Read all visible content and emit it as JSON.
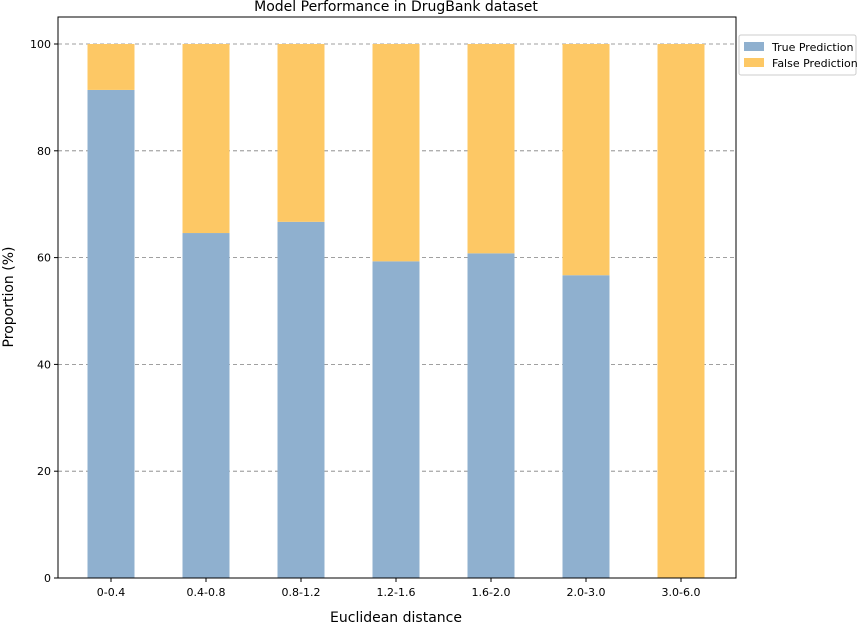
{
  "chart_data": {
    "type": "bar",
    "stacked": true,
    "title": "Model Performance in DrugBank dataset",
    "xlabel": "Euclidean distance",
    "ylabel": "Proportion (%)",
    "ylim": [
      0,
      100
    ],
    "yticks": [
      0,
      20,
      40,
      60,
      80,
      100
    ],
    "grid": "horizontal dashed",
    "legend_position": "outside-top-right",
    "categories": [
      "0-0.4",
      "0.4-0.8",
      "0.8-1.2",
      "1.2-1.6",
      "1.6-2.0",
      "2.0-3.0",
      "3.0-6.0"
    ],
    "series": [
      {
        "name": "True Prediction",
        "color": "#8fb0cf",
        "values": [
          91.4,
          64.6,
          66.7,
          59.3,
          60.8,
          56.7,
          0
        ]
      },
      {
        "name": "False Prediction",
        "color": "#fdc865",
        "values": [
          8.6,
          35.4,
          33.3,
          40.7,
          39.2,
          43.3,
          100
        ]
      }
    ]
  }
}
